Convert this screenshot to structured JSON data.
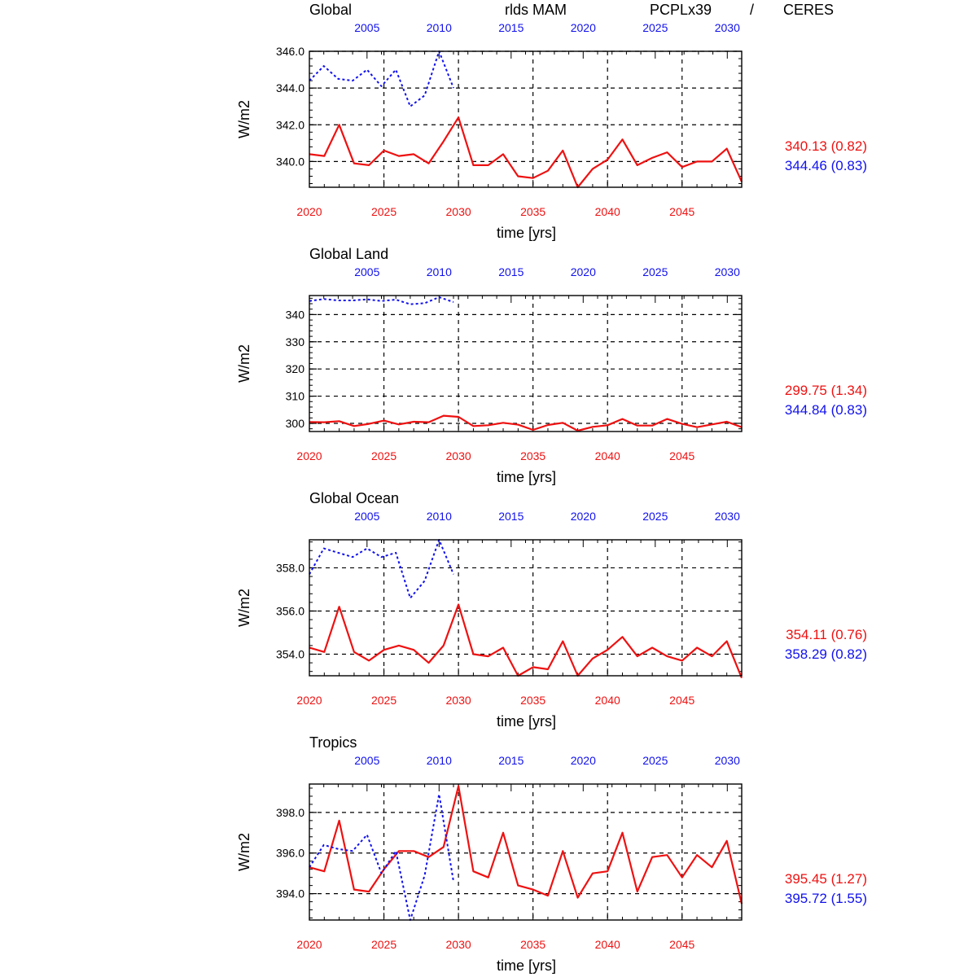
{
  "header": {
    "variable": "rlds MAM",
    "model_name": "PCPLx39",
    "separator": "/",
    "obs_name": "CERES"
  },
  "colors": {
    "model": "#ee1111",
    "obs": "#1111ee",
    "axis": "#000000"
  },
  "chart_data": [
    {
      "type": "line",
      "title": "Global",
      "ylabel": "W/m2",
      "xlabel": "time [yrs]",
      "xlim_bottom": [
        2020,
        2049
      ],
      "xlim_top": [
        2001,
        2031
      ],
      "ylim": [
        338.6,
        346.0
      ],
      "yticks": [
        340.0,
        342.0,
        344.0,
        346.0
      ],
      "ytick_decimals": 1,
      "bottom_ticks": [
        2020,
        2025,
        2030,
        2035,
        2040,
        2045
      ],
      "top_ticks": [
        2005,
        2010,
        2015,
        2020,
        2025,
        2030
      ],
      "series": [
        {
          "role": "model",
          "x_axis": "bottom",
          "x": [
            2020,
            2021,
            2022,
            2023,
            2024,
            2025,
            2026,
            2027,
            2028,
            2029,
            2030,
            2031,
            2032,
            2033,
            2034,
            2035,
            2036,
            2037,
            2038,
            2039,
            2040,
            2041,
            2042,
            2043,
            2044,
            2045,
            2046,
            2047,
            2048,
            2049
          ],
          "values": [
            340.4,
            340.3,
            342.0,
            339.9,
            339.8,
            340.6,
            340.3,
            340.4,
            339.9,
            341.1,
            342.4,
            339.8,
            339.8,
            340.4,
            339.2,
            339.1,
            339.5,
            340.6,
            338.6,
            339.6,
            340.1,
            341.2,
            339.8,
            340.2,
            340.5,
            339.7,
            340.0,
            340.0,
            340.7,
            338.9
          ]
        },
        {
          "role": "obs",
          "x_axis": "top",
          "x": [
            2001,
            2002,
            2003,
            2004,
            2005,
            2006,
            2007,
            2008,
            2009,
            2010,
            2011
          ],
          "values": [
            344.4,
            345.2,
            344.5,
            344.4,
            345.0,
            344.1,
            345.0,
            343.0,
            343.6,
            346.0,
            344.0
          ]
        }
      ],
      "stats": {
        "model": "340.13 (0.82)",
        "obs": "344.46 (0.83)"
      }
    },
    {
      "type": "line",
      "title": "Global Land",
      "ylabel": "W/m2",
      "xlabel": "time [yrs]",
      "xlim_bottom": [
        2020,
        2049
      ],
      "xlim_top": [
        2001,
        2031
      ],
      "ylim": [
        297.0,
        347.0
      ],
      "yticks": [
        300,
        310,
        320,
        330,
        340
      ],
      "ytick_decimals": 0,
      "bottom_ticks": [
        2020,
        2025,
        2030,
        2035,
        2040,
        2045
      ],
      "top_ticks": [
        2005,
        2010,
        2015,
        2020,
        2025,
        2030
      ],
      "series": [
        {
          "role": "model",
          "x_axis": "bottom",
          "x": [
            2020,
            2021,
            2022,
            2023,
            2024,
            2025,
            2026,
            2027,
            2028,
            2029,
            2030,
            2031,
            2032,
            2033,
            2034,
            2035,
            2036,
            2037,
            2038,
            2039,
            2040,
            2041,
            2042,
            2043,
            2044,
            2045,
            2046,
            2047,
            2048,
            2049
          ],
          "values": [
            300.5,
            300.4,
            300.8,
            299.0,
            299.8,
            301.0,
            299.6,
            300.6,
            300.4,
            302.8,
            302.4,
            299.0,
            299.3,
            300.2,
            299.5,
            297.6,
            299.4,
            300.2,
            297.3,
            298.7,
            299.3,
            301.6,
            299.2,
            299.2,
            301.6,
            299.8,
            298.6,
            299.6,
            300.6,
            298.6
          ]
        },
        {
          "role": "obs",
          "x_axis": "top",
          "x": [
            2001,
            2002,
            2003,
            2004,
            2005,
            2006,
            2007,
            2008,
            2009,
            2010,
            2011
          ],
          "values": [
            345.0,
            345.7,
            345.2,
            345.2,
            345.6,
            345.0,
            345.5,
            343.8,
            344.2,
            346.4,
            344.6
          ]
        }
      ],
      "stats": {
        "model": "299.75 (1.34)",
        "obs": "344.84 (0.83)"
      }
    },
    {
      "type": "line",
      "title": "Global Ocean",
      "ylabel": "W/m2",
      "xlabel": "time [yrs]",
      "xlim_bottom": [
        2020,
        2049
      ],
      "xlim_top": [
        2001,
        2031
      ],
      "ylim": [
        353.0,
        359.3
      ],
      "yticks": [
        354.0,
        356.0,
        358.0
      ],
      "ytick_decimals": 1,
      "bottom_ticks": [
        2020,
        2025,
        2030,
        2035,
        2040,
        2045
      ],
      "top_ticks": [
        2005,
        2010,
        2015,
        2020,
        2025,
        2030
      ],
      "series": [
        {
          "role": "model",
          "x_axis": "bottom",
          "x": [
            2020,
            2021,
            2022,
            2023,
            2024,
            2025,
            2026,
            2027,
            2028,
            2029,
            2030,
            2031,
            2032,
            2033,
            2034,
            2035,
            2036,
            2037,
            2038,
            2039,
            2040,
            2041,
            2042,
            2043,
            2044,
            2045,
            2046,
            2047,
            2048,
            2049
          ],
          "values": [
            354.3,
            354.1,
            356.2,
            354.1,
            353.7,
            354.2,
            354.4,
            354.2,
            353.6,
            354.4,
            356.3,
            354.0,
            353.9,
            354.3,
            353.0,
            353.4,
            353.3,
            354.6,
            353.0,
            353.8,
            354.2,
            354.8,
            353.9,
            354.3,
            353.9,
            353.7,
            354.3,
            353.9,
            354.6,
            352.9
          ]
        },
        {
          "role": "obs",
          "x_axis": "top",
          "x": [
            2001,
            2002,
            2003,
            2004,
            2005,
            2006,
            2007,
            2008,
            2009,
            2010,
            2011
          ],
          "values": [
            357.7,
            358.9,
            358.7,
            358.5,
            358.9,
            358.5,
            358.7,
            356.6,
            357.4,
            359.3,
            357.7
          ]
        }
      ],
      "stats": {
        "model": "354.11 (0.76)",
        "obs": "358.29 (0.82)"
      }
    },
    {
      "type": "line",
      "title": "Tropics",
      "ylabel": "W/m2",
      "xlabel": "time [yrs]",
      "xlim_bottom": [
        2020,
        2049
      ],
      "xlim_top": [
        2001,
        2031
      ],
      "ylim": [
        392.7,
        399.4
      ],
      "yticks": [
        394.0,
        396.0,
        398.0
      ],
      "ytick_decimals": 1,
      "bottom_ticks": [
        2020,
        2025,
        2030,
        2035,
        2040,
        2045
      ],
      "top_ticks": [
        2005,
        2010,
        2015,
        2020,
        2025,
        2030
      ],
      "series": [
        {
          "role": "model",
          "x_axis": "bottom",
          "x": [
            2020,
            2021,
            2022,
            2023,
            2024,
            2025,
            2026,
            2027,
            2028,
            2029,
            2030,
            2031,
            2032,
            2033,
            2034,
            2035,
            2036,
            2037,
            2038,
            2039,
            2040,
            2041,
            2042,
            2043,
            2044,
            2045,
            2046,
            2047,
            2048,
            2049
          ],
          "values": [
            395.3,
            395.1,
            397.6,
            394.2,
            394.1,
            395.2,
            396.1,
            396.1,
            395.8,
            396.3,
            399.3,
            395.1,
            394.8,
            397.0,
            394.4,
            394.2,
            393.9,
            396.1,
            393.8,
            395.0,
            395.1,
            397.0,
            394.1,
            395.8,
            395.9,
            394.8,
            395.9,
            395.3,
            396.6,
            393.5
          ]
        },
        {
          "role": "obs",
          "x_axis": "top",
          "x": [
            2001,
            2002,
            2003,
            2004,
            2005,
            2006,
            2007,
            2008,
            2009,
            2010,
            2011
          ],
          "values": [
            395.3,
            396.4,
            396.2,
            396.1,
            396.9,
            395.0,
            396.1,
            392.7,
            394.9,
            398.9,
            394.6
          ]
        }
      ],
      "stats": {
        "model": "395.45 (1.27)",
        "obs": "395.72 (1.55)"
      }
    }
  ]
}
